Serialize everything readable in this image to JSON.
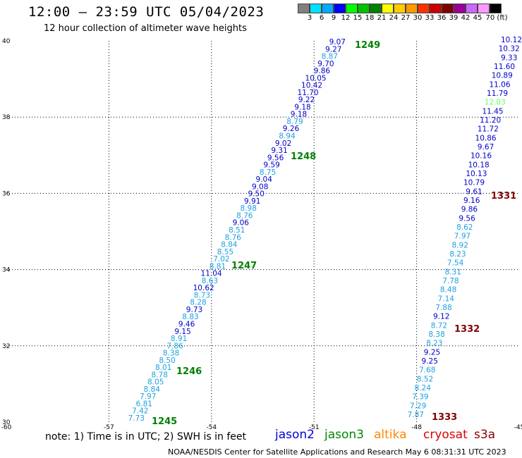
{
  "title": "12:00 — 23:59 UTC 05/04/2023",
  "subtitle": "12 hour collection of altimeter wave heights",
  "colorbar": {
    "colors": [
      "#808080",
      "#00e0ff",
      "#00aaff",
      "#0000ff",
      "#00ff00",
      "#00c000",
      "#008000",
      "#ffff00",
      "#ffcc00",
      "#ff9900",
      "#ff3300",
      "#cc0000",
      "#800000",
      "#990099",
      "#cc66ff",
      "#ff99ff",
      "#000000"
    ],
    "labels": [
      "3",
      "6",
      "9",
      "12",
      "15",
      "18",
      "21",
      "24",
      "27",
      "30",
      "33",
      "36",
      "39",
      "42",
      "45",
      "70 (ft)"
    ]
  },
  "axes": {
    "lon": [
      {
        "value": -60,
        "label": "-60"
      },
      {
        "value": -57,
        "label": "-57"
      },
      {
        "value": -54,
        "label": "-54"
      },
      {
        "value": -51,
        "label": "-51"
      },
      {
        "value": -48,
        "label": "-48"
      },
      {
        "value": -45,
        "label": "-45"
      }
    ],
    "lat": [
      {
        "value": 30,
        "label": "30"
      },
      {
        "value": 32,
        "label": "32"
      },
      {
        "value": 34,
        "label": "34"
      },
      {
        "value": 36,
        "label": "36"
      },
      {
        "value": 38,
        "label": "38"
      },
      {
        "value": 40,
        "label": "40"
      }
    ]
  },
  "colors": {
    "dark_blue": "#0000cc",
    "light_blue": "#1ba1e2",
    "green": "#66ff66",
    "pass_green": "#008000",
    "pass_red": "#800000"
  },
  "tracks": [
    {
      "points": [
        {
          "v": "7.73",
          "c": "light_blue"
        },
        {
          "v": "7.42",
          "c": "light_blue"
        },
        {
          "v": "6.81",
          "c": "light_blue"
        },
        {
          "v": "7.97",
          "c": "light_blue"
        },
        {
          "v": "8.84",
          "c": "light_blue"
        },
        {
          "v": "8.05",
          "c": "light_blue"
        },
        {
          "v": "8.78",
          "c": "light_blue"
        },
        {
          "v": "8.01",
          "c": "light_blue"
        },
        {
          "v": "8.50",
          "c": "light_blue"
        },
        {
          "v": "8.38",
          "c": "light_blue"
        },
        {
          "v": "7.86",
          "c": "light_blue"
        },
        {
          "v": "8.91",
          "c": "light_blue"
        },
        {
          "v": "9.15",
          "c": "dark_blue"
        },
        {
          "v": "9.46",
          "c": "dark_blue"
        },
        {
          "v": "8.83",
          "c": "light_blue"
        },
        {
          "v": "9.73",
          "c": "dark_blue"
        },
        {
          "v": "8.28",
          "c": "light_blue"
        },
        {
          "v": "8.73",
          "c": "light_blue"
        },
        {
          "v": "10.62",
          "c": "dark_blue"
        },
        {
          "v": "8.63",
          "c": "light_blue"
        },
        {
          "v": "11.04",
          "c": "dark_blue"
        },
        {
          "v": "8.81",
          "c": "light_blue"
        },
        {
          "v": "7.02",
          "c": "light_blue"
        },
        {
          "v": "8.55",
          "c": "light_blue"
        },
        {
          "v": "8.84",
          "c": "light_blue"
        },
        {
          "v": "8.76",
          "c": "light_blue"
        },
        {
          "v": "8.51",
          "c": "light_blue"
        },
        {
          "v": "9.06",
          "c": "dark_blue"
        },
        {
          "v": "8.76",
          "c": "light_blue"
        },
        {
          "v": "8.98",
          "c": "light_blue"
        },
        {
          "v": "9.91",
          "c": "dark_blue"
        },
        {
          "v": "9.50",
          "c": "dark_blue"
        },
        {
          "v": "9.08",
          "c": "dark_blue"
        },
        {
          "v": "9.04",
          "c": "dark_blue"
        },
        {
          "v": "8.75",
          "c": "light_blue"
        },
        {
          "v": "9.59",
          "c": "dark_blue"
        },
        {
          "v": "9.56",
          "c": "dark_blue"
        },
        {
          "v": "9.31",
          "c": "dark_blue"
        },
        {
          "v": "9.02",
          "c": "dark_blue"
        },
        {
          "v": "8.94",
          "c": "light_blue"
        },
        {
          "v": "9.26",
          "c": "dark_blue"
        },
        {
          "v": "8.79",
          "c": "light_blue"
        },
        {
          "v": "9.18",
          "c": "dark_blue"
        },
        {
          "v": "9.18",
          "c": "dark_blue"
        },
        {
          "v": "9.22",
          "c": "dark_blue"
        },
        {
          "v": "11.70",
          "c": "dark_blue"
        },
        {
          "v": "10.42",
          "c": "dark_blue"
        },
        {
          "v": "10.05",
          "c": "dark_blue"
        },
        {
          "v": "9.86",
          "c": "dark_blue"
        },
        {
          "v": "9.70",
          "c": "dark_blue"
        },
        {
          "v": "8.87",
          "c": "light_blue"
        },
        {
          "v": "9.27",
          "c": "dark_blue"
        },
        {
          "v": "9.07",
          "c": "dark_blue"
        }
      ]
    },
    {
      "points": [
        {
          "v": "7.87",
          "c": "light_blue"
        },
        {
          "v": "7.29",
          "c": "light_blue"
        },
        {
          "v": "7.39",
          "c": "light_blue"
        },
        {
          "v": "8.24",
          "c": "light_blue"
        },
        {
          "v": "8.52",
          "c": "light_blue"
        },
        {
          "v": "7.68",
          "c": "light_blue"
        },
        {
          "v": "9.25",
          "c": "dark_blue"
        },
        {
          "v": "9.25",
          "c": "dark_blue"
        },
        {
          "v": "8.23",
          "c": "light_blue"
        },
        {
          "v": "8.38",
          "c": "light_blue"
        },
        {
          "v": "8.72",
          "c": "light_blue"
        },
        {
          "v": "9.12",
          "c": "dark_blue"
        },
        {
          "v": "7.88",
          "c": "light_blue"
        },
        {
          "v": "7.14",
          "c": "light_blue"
        },
        {
          "v": "8.48",
          "c": "light_blue"
        },
        {
          "v": "7.78",
          "c": "light_blue"
        },
        {
          "v": "8.31",
          "c": "light_blue"
        },
        {
          "v": "7.54",
          "c": "light_blue"
        },
        {
          "v": "8.23",
          "c": "light_blue"
        },
        {
          "v": "8.92",
          "c": "light_blue"
        },
        {
          "v": "7.97",
          "c": "light_blue"
        },
        {
          "v": "8.62",
          "c": "light_blue"
        },
        {
          "v": "9.56",
          "c": "dark_blue"
        },
        {
          "v": "9.86",
          "c": "dark_blue"
        },
        {
          "v": "9.16",
          "c": "dark_blue"
        },
        {
          "v": "9.61",
          "c": "dark_blue"
        },
        {
          "v": "10.79",
          "c": "dark_blue"
        },
        {
          "v": "10.13",
          "c": "dark_blue"
        },
        {
          "v": "10.18",
          "c": "dark_blue"
        },
        {
          "v": "10.16",
          "c": "dark_blue"
        },
        {
          "v": "9.67",
          "c": "dark_blue"
        },
        {
          "v": "10.86",
          "c": "dark_blue"
        },
        {
          "v": "11.72",
          "c": "dark_blue"
        },
        {
          "v": "11.20",
          "c": "dark_blue"
        },
        {
          "v": "11.45",
          "c": "dark_blue"
        },
        {
          "v": "12.03",
          "c": "green"
        },
        {
          "v": "11.79",
          "c": "dark_blue"
        },
        {
          "v": "11.06",
          "c": "dark_blue"
        },
        {
          "v": "10.89",
          "c": "dark_blue"
        },
        {
          "v": "11.60",
          "c": "dark_blue"
        },
        {
          "v": "9.33",
          "c": "dark_blue"
        },
        {
          "v": "10.32",
          "c": "dark_blue"
        },
        {
          "v": "10.12",
          "c": "dark_blue"
        }
      ]
    }
  ],
  "passes": [
    {
      "label": "1245",
      "c": "pass_green"
    },
    {
      "label": "1246",
      "c": "pass_green"
    },
    {
      "label": "1247",
      "c": "pass_green"
    },
    {
      "label": "1248",
      "c": "pass_green"
    },
    {
      "label": "1249",
      "c": "pass_green"
    },
    {
      "label": "1331",
      "c": "pass_red"
    },
    {
      "label": "1332",
      "c": "pass_red"
    },
    {
      "label": "1333",
      "c": "pass_red"
    }
  ],
  "note": "note: 1) Time is in UTC; 2) SWH is in feet",
  "legend": [
    {
      "label": "jason2",
      "color": "#0000dd"
    },
    {
      "label": "jason3",
      "color": "#008800"
    },
    {
      "label": "altika",
      "color": "#ff8800"
    },
    {
      "label": "cryosat",
      "color": "#dd0000"
    },
    {
      "label": "s3a",
      "color": "#880000"
    }
  ],
  "footer": "NOAA/NESDIS Center for Satellite Applications and Research    May  6 08:31:31 UTC 2023"
}
